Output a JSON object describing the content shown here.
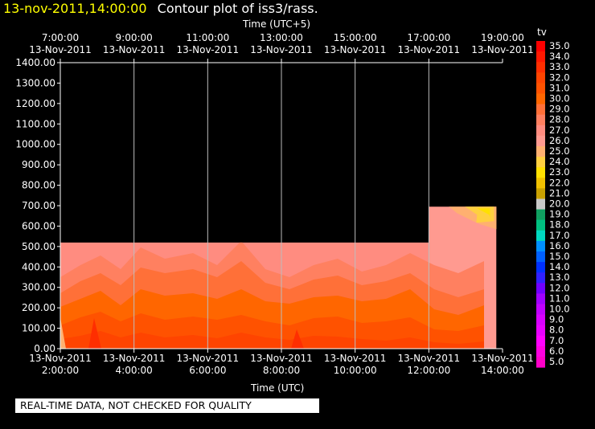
{
  "header": {
    "timestamp": "13-nov-2011,14:00:00",
    "title": "Contour plot of iss3/rass."
  },
  "banner": "REAL-TIME DATA, NOT CHECKED FOR QUALITY",
  "chart_data": {
    "type": "heatmap",
    "title": "Contour plot of iss3/rass.",
    "top_axis_label": "Time (UTC+5)",
    "xlabel": "Time (UTC)",
    "ylabel": "",
    "ylim": [
      0,
      1400
    ],
    "xlim": [
      "2011-11-13 02:00",
      "2011-11-13 14:00"
    ],
    "grid": true,
    "y_ticks": [
      "0.00",
      "100.00",
      "200.00",
      "300.00",
      "400.00",
      "500.00",
      "600.00",
      "700.00",
      "800.00",
      "900.00",
      "1000.00",
      "1100.00",
      "1200.00",
      "1300.00",
      "1400.00"
    ],
    "x_ticks_bottom": [
      {
        "date": "13-Nov-2011",
        "time": "2:00:00"
      },
      {
        "date": "13-Nov-2011",
        "time": "4:00:00"
      },
      {
        "date": "13-Nov-2011",
        "time": "6:00:00"
      },
      {
        "date": "13-Nov-2011",
        "time": "8:00:00"
      },
      {
        "date": "13-Nov-2011",
        "time": "10:00:00"
      },
      {
        "date": "13-Nov-2011",
        "time": "12:00:00"
      },
      {
        "date": "13-Nov-2011",
        "time": "14:00:00"
      }
    ],
    "x_ticks_top": [
      {
        "date": "13-Nov-2011",
        "time": "7:00:00"
      },
      {
        "date": "13-Nov-2011",
        "time": "9:00:00"
      },
      {
        "date": "13-Nov-2011",
        "time": "11:00:00"
      },
      {
        "date": "13-Nov-2011",
        "time": "13:00:00"
      },
      {
        "date": "13-Nov-2011",
        "time": "15:00:00"
      },
      {
        "date": "13-Nov-2011",
        "time": "17:00:00"
      },
      {
        "date": "13-Nov-2011",
        "time": "19:00:00"
      }
    ],
    "colorbar": {
      "label": "tv",
      "levels": [
        "35.0",
        "34.0",
        "33.0",
        "32.0",
        "31.0",
        "30.0",
        "29.0",
        "28.0",
        "27.0",
        "26.0",
        "25.0",
        "24.0",
        "23.0",
        "22.0",
        "21.0",
        "20.0",
        "19.0",
        "18.0",
        "17.0",
        "16.0",
        "15.0",
        "14.0",
        "13.0",
        "12.0",
        "11.0",
        "10.0",
        "9.0",
        "8.0",
        "7.0",
        "6.0",
        "5.0"
      ],
      "colors": [
        "#ff0000",
        "#ff1800",
        "#ff2e00",
        "#ff4400",
        "#ff5200",
        "#ff6600",
        "#ff7038",
        "#ff8060",
        "#ff8c80",
        "#ff9a90",
        "#ffb070",
        "#ffd040",
        "#ffe000",
        "#f0c000",
        "#c8a000",
        "#c8c8c8",
        "#10a060",
        "#00c080",
        "#00d8c0",
        "#0090ff",
        "#0060ff",
        "#0030ff",
        "#3020ff",
        "#7000ff",
        "#a000ff",
        "#c000ff",
        "#d800ff",
        "#e800ff",
        "#ff00ff",
        "#ff00e0",
        "#ff00c8"
      ]
    },
    "regions": [
      {
        "name": "main",
        "x_from": "2:00",
        "x_to": "12:00",
        "ymax": 520
      },
      {
        "name": "late",
        "x_from": "12:00",
        "x_to": "13:50",
        "ymax": 695
      }
    ]
  }
}
